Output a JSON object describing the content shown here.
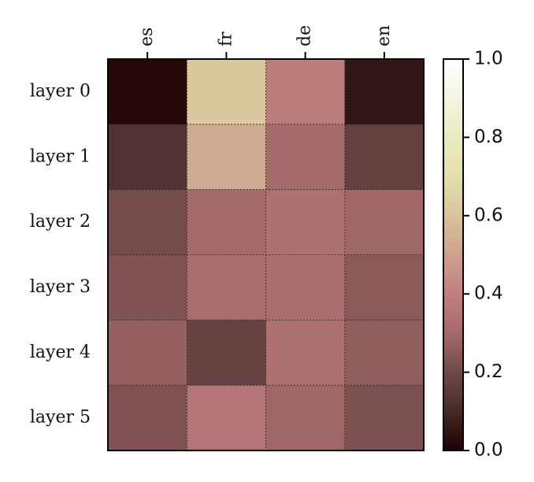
{
  "chart_data": {
    "type": "heatmap",
    "columns": [
      "es",
      "fr",
      "de",
      "en"
    ],
    "rows": [
      "layer 0",
      "layer 1",
      "layer 2",
      "layer 3",
      "layer 4",
      "layer 5"
    ],
    "values": [
      [
        0.02,
        0.62,
        0.38,
        0.05
      ],
      [
        0.13,
        0.52,
        0.3,
        0.17
      ],
      [
        0.21,
        0.3,
        0.33,
        0.29
      ],
      [
        0.23,
        0.32,
        0.32,
        0.25
      ],
      [
        0.27,
        0.18,
        0.33,
        0.26
      ],
      [
        0.23,
        0.35,
        0.29,
        0.22
      ]
    ],
    "colorbar": {
      "range": [
        0.0,
        1.0
      ],
      "ticks": [
        "0.0",
        "0.2",
        "0.4",
        "0.6",
        "0.8",
        "1.0"
      ]
    },
    "colormap": "pink",
    "grid": true
  }
}
